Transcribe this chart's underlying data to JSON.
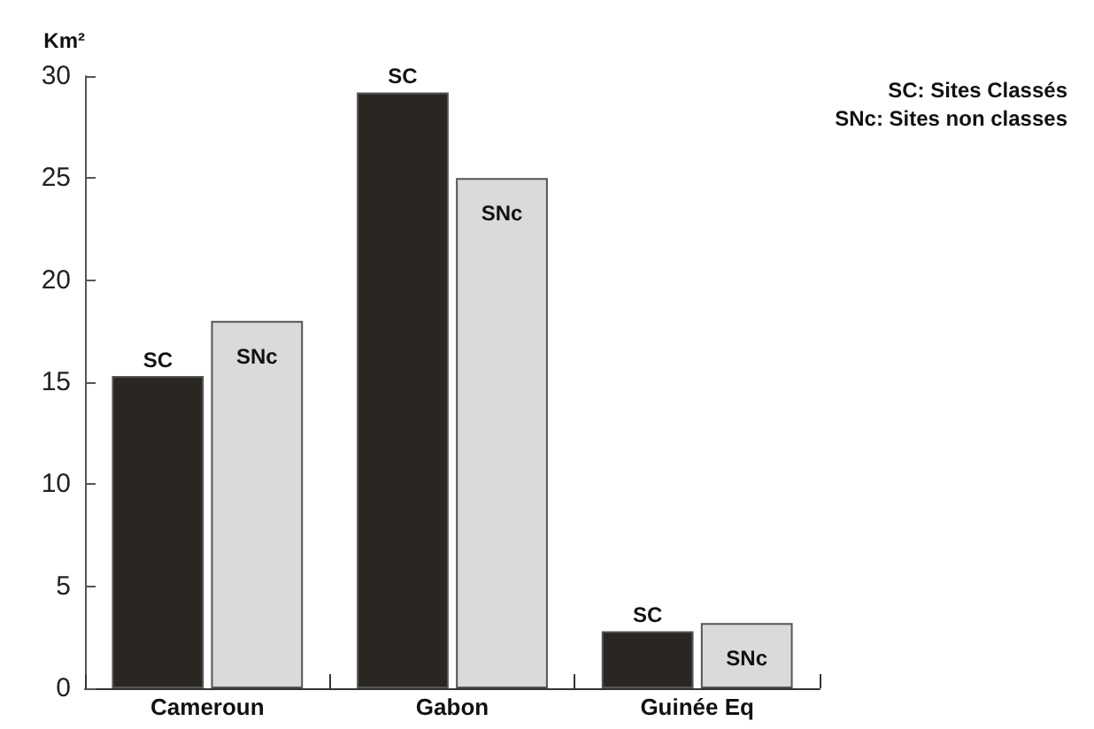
{
  "chart_data": {
    "type": "bar",
    "ylabel": "Km²",
    "categories": [
      "Cameroun",
      "Gabon",
      "Guinée Eq"
    ],
    "series": [
      {
        "name": "SC",
        "color": "#2a2622",
        "values": [
          15.3,
          29.2,
          2.8
        ]
      },
      {
        "name": "SNc",
        "color": "#d8dadb",
        "values": [
          18.0,
          25.0,
          3.2
        ]
      }
    ],
    "ylim": [
      0,
      30
    ],
    "yticks": [
      0,
      5,
      10,
      15,
      20,
      25,
      30
    ],
    "grid": false,
    "legend": false,
    "annotations": [
      "SC: Sites Classés",
      "SNc: Sites non classes"
    ]
  }
}
